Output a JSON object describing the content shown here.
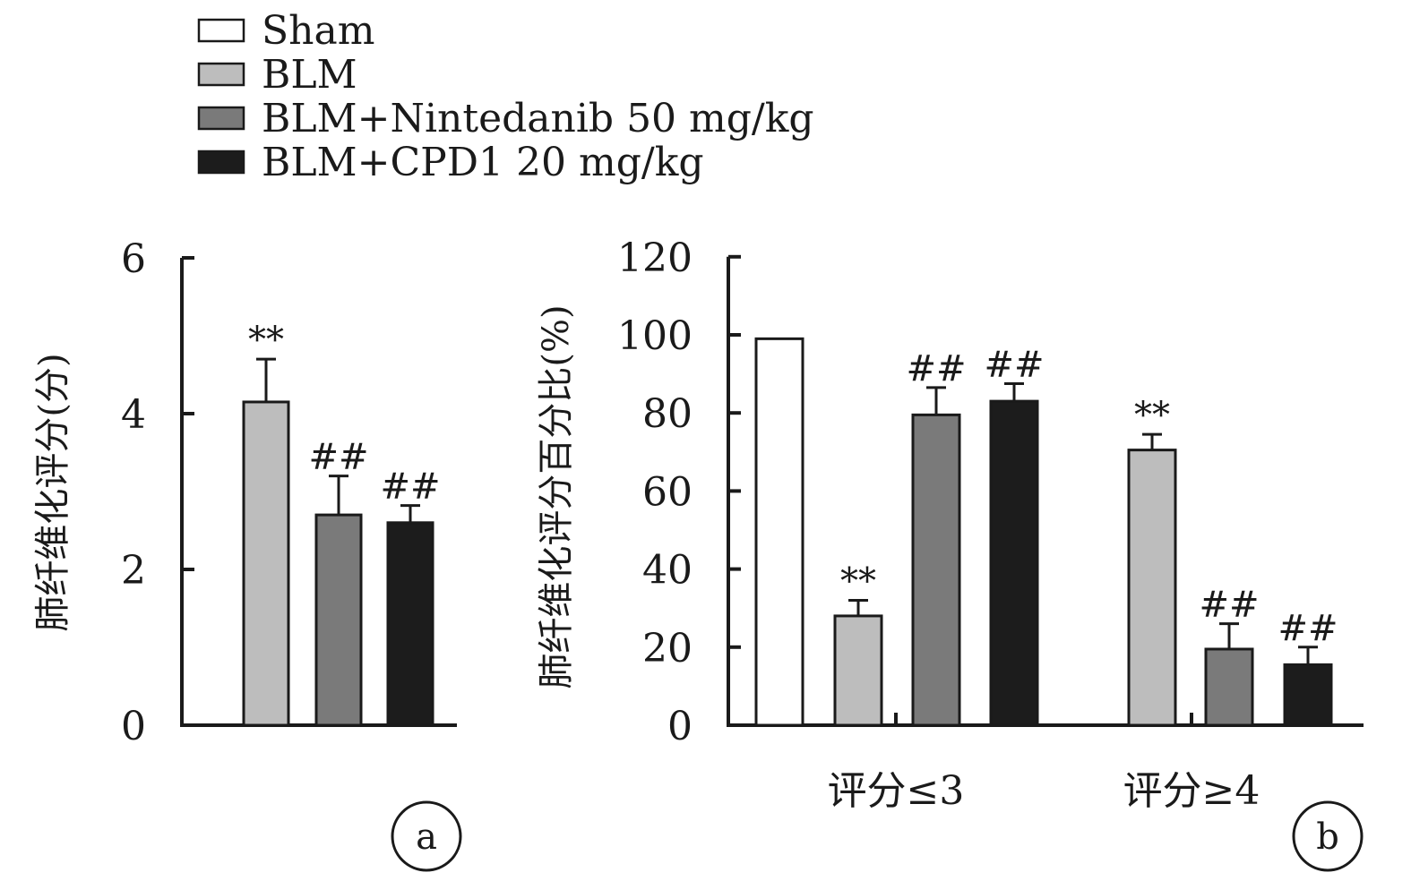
{
  "legend": {
    "items": [
      {
        "label": "Sham",
        "color": "#ffffff"
      },
      {
        "label": "BLM",
        "color": "#bdbdbd"
      },
      {
        "label": "BLM+Nintedanib 50 mg/kg",
        "color": "#7a7a7a"
      },
      {
        "label": "BLM+CPD1 20 mg/kg",
        "color": "#1c1c1c"
      }
    ]
  },
  "chart_data": [
    {
      "type": "bar",
      "panel": "a",
      "ylabel": "肺纤维化评分(分)",
      "ylim": [
        0,
        6
      ],
      "yticks": [
        0,
        2,
        4,
        6
      ],
      "series": [
        {
          "name": "BLM",
          "values": [
            4.15
          ],
          "errors": [
            0.55
          ],
          "annotation": "**"
        },
        {
          "name": "BLM+Nintedanib 50 mg/kg",
          "values": [
            2.7
          ],
          "errors": [
            0.5
          ],
          "annotation": "##"
        },
        {
          "name": "BLM+CPD1 20 mg/kg",
          "values": [
            2.6
          ],
          "errors": [
            0.22
          ],
          "annotation": "##"
        }
      ]
    },
    {
      "type": "bar",
      "panel": "b",
      "ylabel": "肺纤维化评分百分比(%)",
      "ylim": [
        0,
        120
      ],
      "yticks": [
        0,
        20,
        40,
        60,
        80,
        100,
        120
      ],
      "categories": [
        "评分≤3",
        "评分≥4"
      ],
      "series": [
        {
          "name": "Sham",
          "values": [
            99,
            null
          ],
          "errors": [
            0,
            null
          ],
          "annotations": [
            "",
            ""
          ]
        },
        {
          "name": "BLM",
          "values": [
            28,
            70.5
          ],
          "errors": [
            4,
            4
          ],
          "annotations": [
            "**",
            "**"
          ]
        },
        {
          "name": "BLM+Nintedanib 50 mg/kg",
          "values": [
            79.5,
            19.5
          ],
          "errors": [
            7,
            6.5
          ],
          "annotations": [
            "##",
            "##"
          ]
        },
        {
          "name": "BLM+CPD1 20 mg/kg",
          "values": [
            83,
            15.5
          ],
          "errors": [
            4.5,
            4.5
          ],
          "annotations": [
            "##",
            "##"
          ]
        }
      ]
    }
  ]
}
